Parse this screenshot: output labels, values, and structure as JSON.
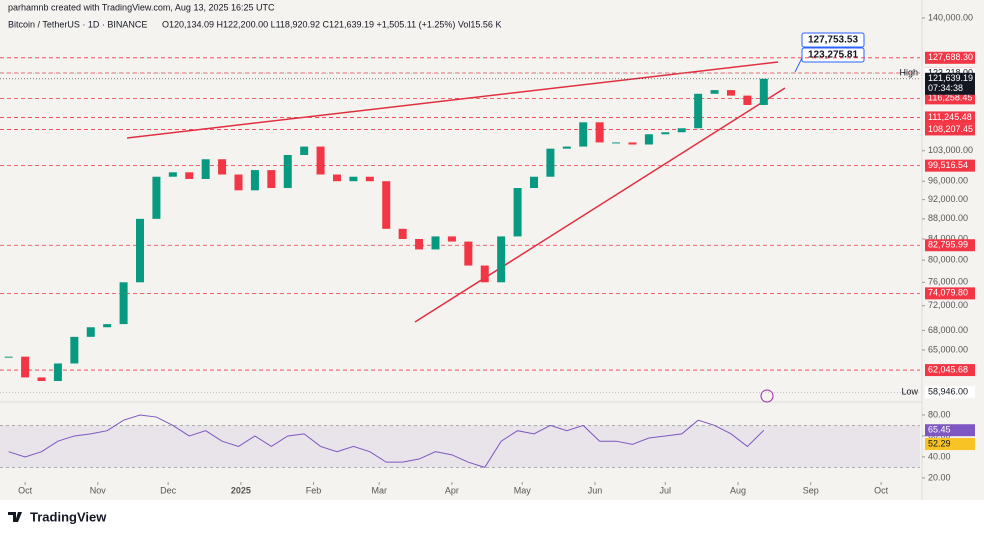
{
  "chart_data": {
    "type": "candlestick",
    "header": "parhamnb created with TradingView.com, Aug 13, 2025 16:25 UTC",
    "title": "Bitcoin / TetherUS · 1D · BINANCE",
    "ohlc_text": "O120,134.09 H122,200.00 L118,920.92 C121,639.19 +1,505.11 (+1.25%) Vol15.56 K",
    "x": [
      -7,
      0,
      7,
      14,
      21,
      28,
      35,
      42,
      49,
      56,
      63,
      70,
      77,
      84,
      91,
      98,
      105,
      112,
      119,
      126,
      133,
      140,
      147,
      154,
      161,
      168,
      175,
      182,
      189,
      196,
      203,
      210,
      217,
      224,
      231,
      238,
      245,
      252,
      259,
      266,
      273,
      280,
      287,
      294,
      301,
      308,
      315
    ],
    "series": [
      {
        "name": "BTCUSDT",
        "values": [
          64000,
          61000,
          60500,
          63000,
          67000,
          68500,
          69000,
          76000,
          88000,
          97000,
          98000,
          96500,
          101000,
          97500,
          94000,
          98500,
          94500,
          102000,
          104000,
          97500,
          96000,
          97000,
          96000,
          86000,
          84000,
          82000,
          84500,
          83500,
          79000,
          76000,
          84500,
          94500,
          97000,
          103500,
          104000,
          110000,
          105000,
          105000,
          104500,
          107000,
          107500,
          108500,
          117500,
          118500,
          117000,
          114500,
          121639.19
        ]
      },
      {
        "name": "RSI",
        "values": [
          45,
          40,
          45,
          55,
          60,
          62,
          65,
          75,
          80,
          78,
          70,
          60,
          65,
          55,
          50,
          60,
          50,
          60,
          62,
          50,
          45,
          50,
          45,
          35,
          35,
          38,
          45,
          42,
          35,
          30,
          55,
          65,
          62,
          70,
          65,
          70,
          55,
          55,
          52,
          58,
          60,
          62,
          75,
          70,
          62,
          50,
          65.45
        ],
        "color": "#7e57c2"
      }
    ],
    "log_scale": true,
    "xlim": [
      -10.7,
      381.6
    ],
    "xticks": [
      {
        "value": 0,
        "label": "Oct"
      },
      {
        "value": 31,
        "label": "Nov"
      },
      {
        "value": 61,
        "label": "Dec"
      },
      {
        "value": 92,
        "label": "2025"
      },
      {
        "value": 123,
        "label": "Feb"
      },
      {
        "value": 151,
        "label": "Mar"
      },
      {
        "value": 182,
        "label": "Apr"
      },
      {
        "value": 212,
        "label": "May"
      },
      {
        "value": 243,
        "label": "Jun"
      },
      {
        "value": 273,
        "label": "Jul"
      },
      {
        "value": 304,
        "label": "Aug"
      },
      {
        "value": 335,
        "label": "Sep"
      },
      {
        "value": 365,
        "label": "Oct"
      }
    ],
    "ylim": [
      57900,
      142600
    ],
    "yticks": [
      {
        "value": 140000,
        "label": "140,000.00"
      },
      {
        "value": 103000,
        "label": "103,000.00"
      },
      {
        "value": 96000,
        "label": "96,000.00"
      },
      {
        "value": 92000,
        "label": "92,000.00"
      },
      {
        "value": 88000,
        "label": "88,000.00"
      },
      {
        "value": 84000,
        "label": "84,000.00"
      },
      {
        "value": 80000,
        "label": "80,000.00"
      },
      {
        "value": 76000,
        "label": "76,000.00"
      },
      {
        "value": 72000,
        "label": "72,000.00"
      },
      {
        "value": 68000,
        "label": "68,000.00"
      },
      {
        "value": 65000,
        "label": "65,000.00"
      }
    ],
    "levels": [
      {
        "value": 127688.3,
        "label": "127,688.30"
      },
      {
        "value": 123275.81,
        "label": "123,275.81"
      },
      {
        "value": 116258.45,
        "label": "116,258.45"
      },
      {
        "value": 111245.48,
        "label": "111,245.48"
      },
      {
        "value": 108207.45,
        "label": "108,207.45"
      },
      {
        "value": 99516.54,
        "label": "99,516.54"
      },
      {
        "value": 82795.99,
        "label": "82,795.99"
      },
      {
        "value": 74079.8,
        "label": "74,079.80"
      },
      {
        "value": 62045.68,
        "label": "62,045.68"
      }
    ],
    "level_color": "#f23645",
    "high": {
      "name": "High",
      "value": 123218,
      "label": "123,218.00"
    },
    "low": {
      "name": "Low",
      "value": 58946,
      "label": "58,946.00"
    },
    "current": {
      "value": 121639.19,
      "label": "121,639.19",
      "timer": "07:34:38"
    },
    "callouts": [
      "127,753.53",
      "123,275.81"
    ],
    "up_color": "#089981",
    "down_color": "#f23645",
    "rsi_ylim": [
      18,
      89.5
    ],
    "rsi_yticks": [
      {
        "value": 80,
        "label": "80.00"
      },
      {
        "value": 60,
        "label": "60.00"
      },
      {
        "value": 40,
        "label": "40.00"
      },
      {
        "value": 20,
        "label": "20.00"
      }
    ],
    "rsi_band": [
      30,
      70
    ],
    "rsi_label": {
      "value": 65.45,
      "label": "65.45"
    },
    "rsi_ma": {
      "value": 52.29,
      "label": "52.29",
      "color": "#f7c325"
    },
    "logo": "TradingView"
  }
}
